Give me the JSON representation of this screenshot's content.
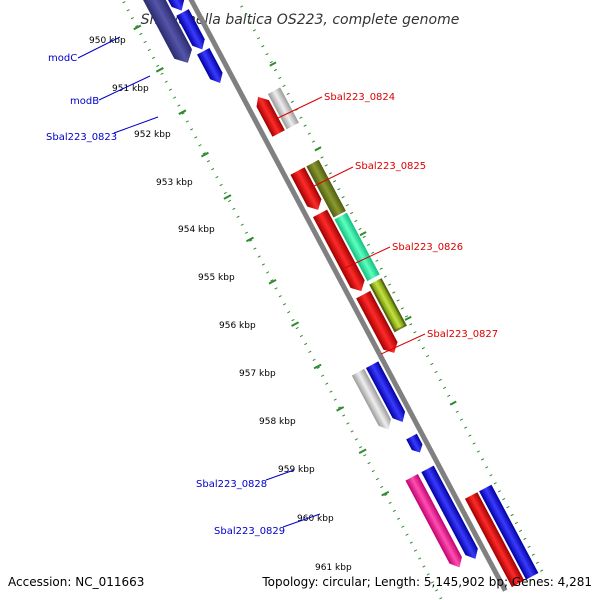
{
  "title": "Shewanella baltica OS223, complete genome",
  "footer": {
    "accession": "Accession: NC_011663",
    "summary": "Topology: circular; Length: 5,145,902 bp; Genes: 4,281"
  },
  "colors": {
    "backbone": "#808080",
    "tick": "#2e8b2e",
    "forward_label": "#0000cc",
    "reverse_label": "#dd0000"
  },
  "ticks": [
    "950 kbp",
    "951 kbp",
    "952 kbp",
    "953 kbp",
    "954 kbp",
    "955 kbp",
    "956 kbp",
    "957 kbp",
    "958 kbp",
    "959 kbp",
    "960 kbp",
    "961 kbp"
  ],
  "labels": {
    "modC": "modC",
    "modB": "modB",
    "sbal0823": "Sbal223_0823",
    "sbal0824": "Sbal223_0824",
    "sbal0825": "Sbal223_0825",
    "sbal0826": "Sbal223_0826",
    "sbal0827": "Sbal223_0827",
    "sbal0828": "Sbal223_0828",
    "sbal0829": "Sbal223_0829"
  }
}
